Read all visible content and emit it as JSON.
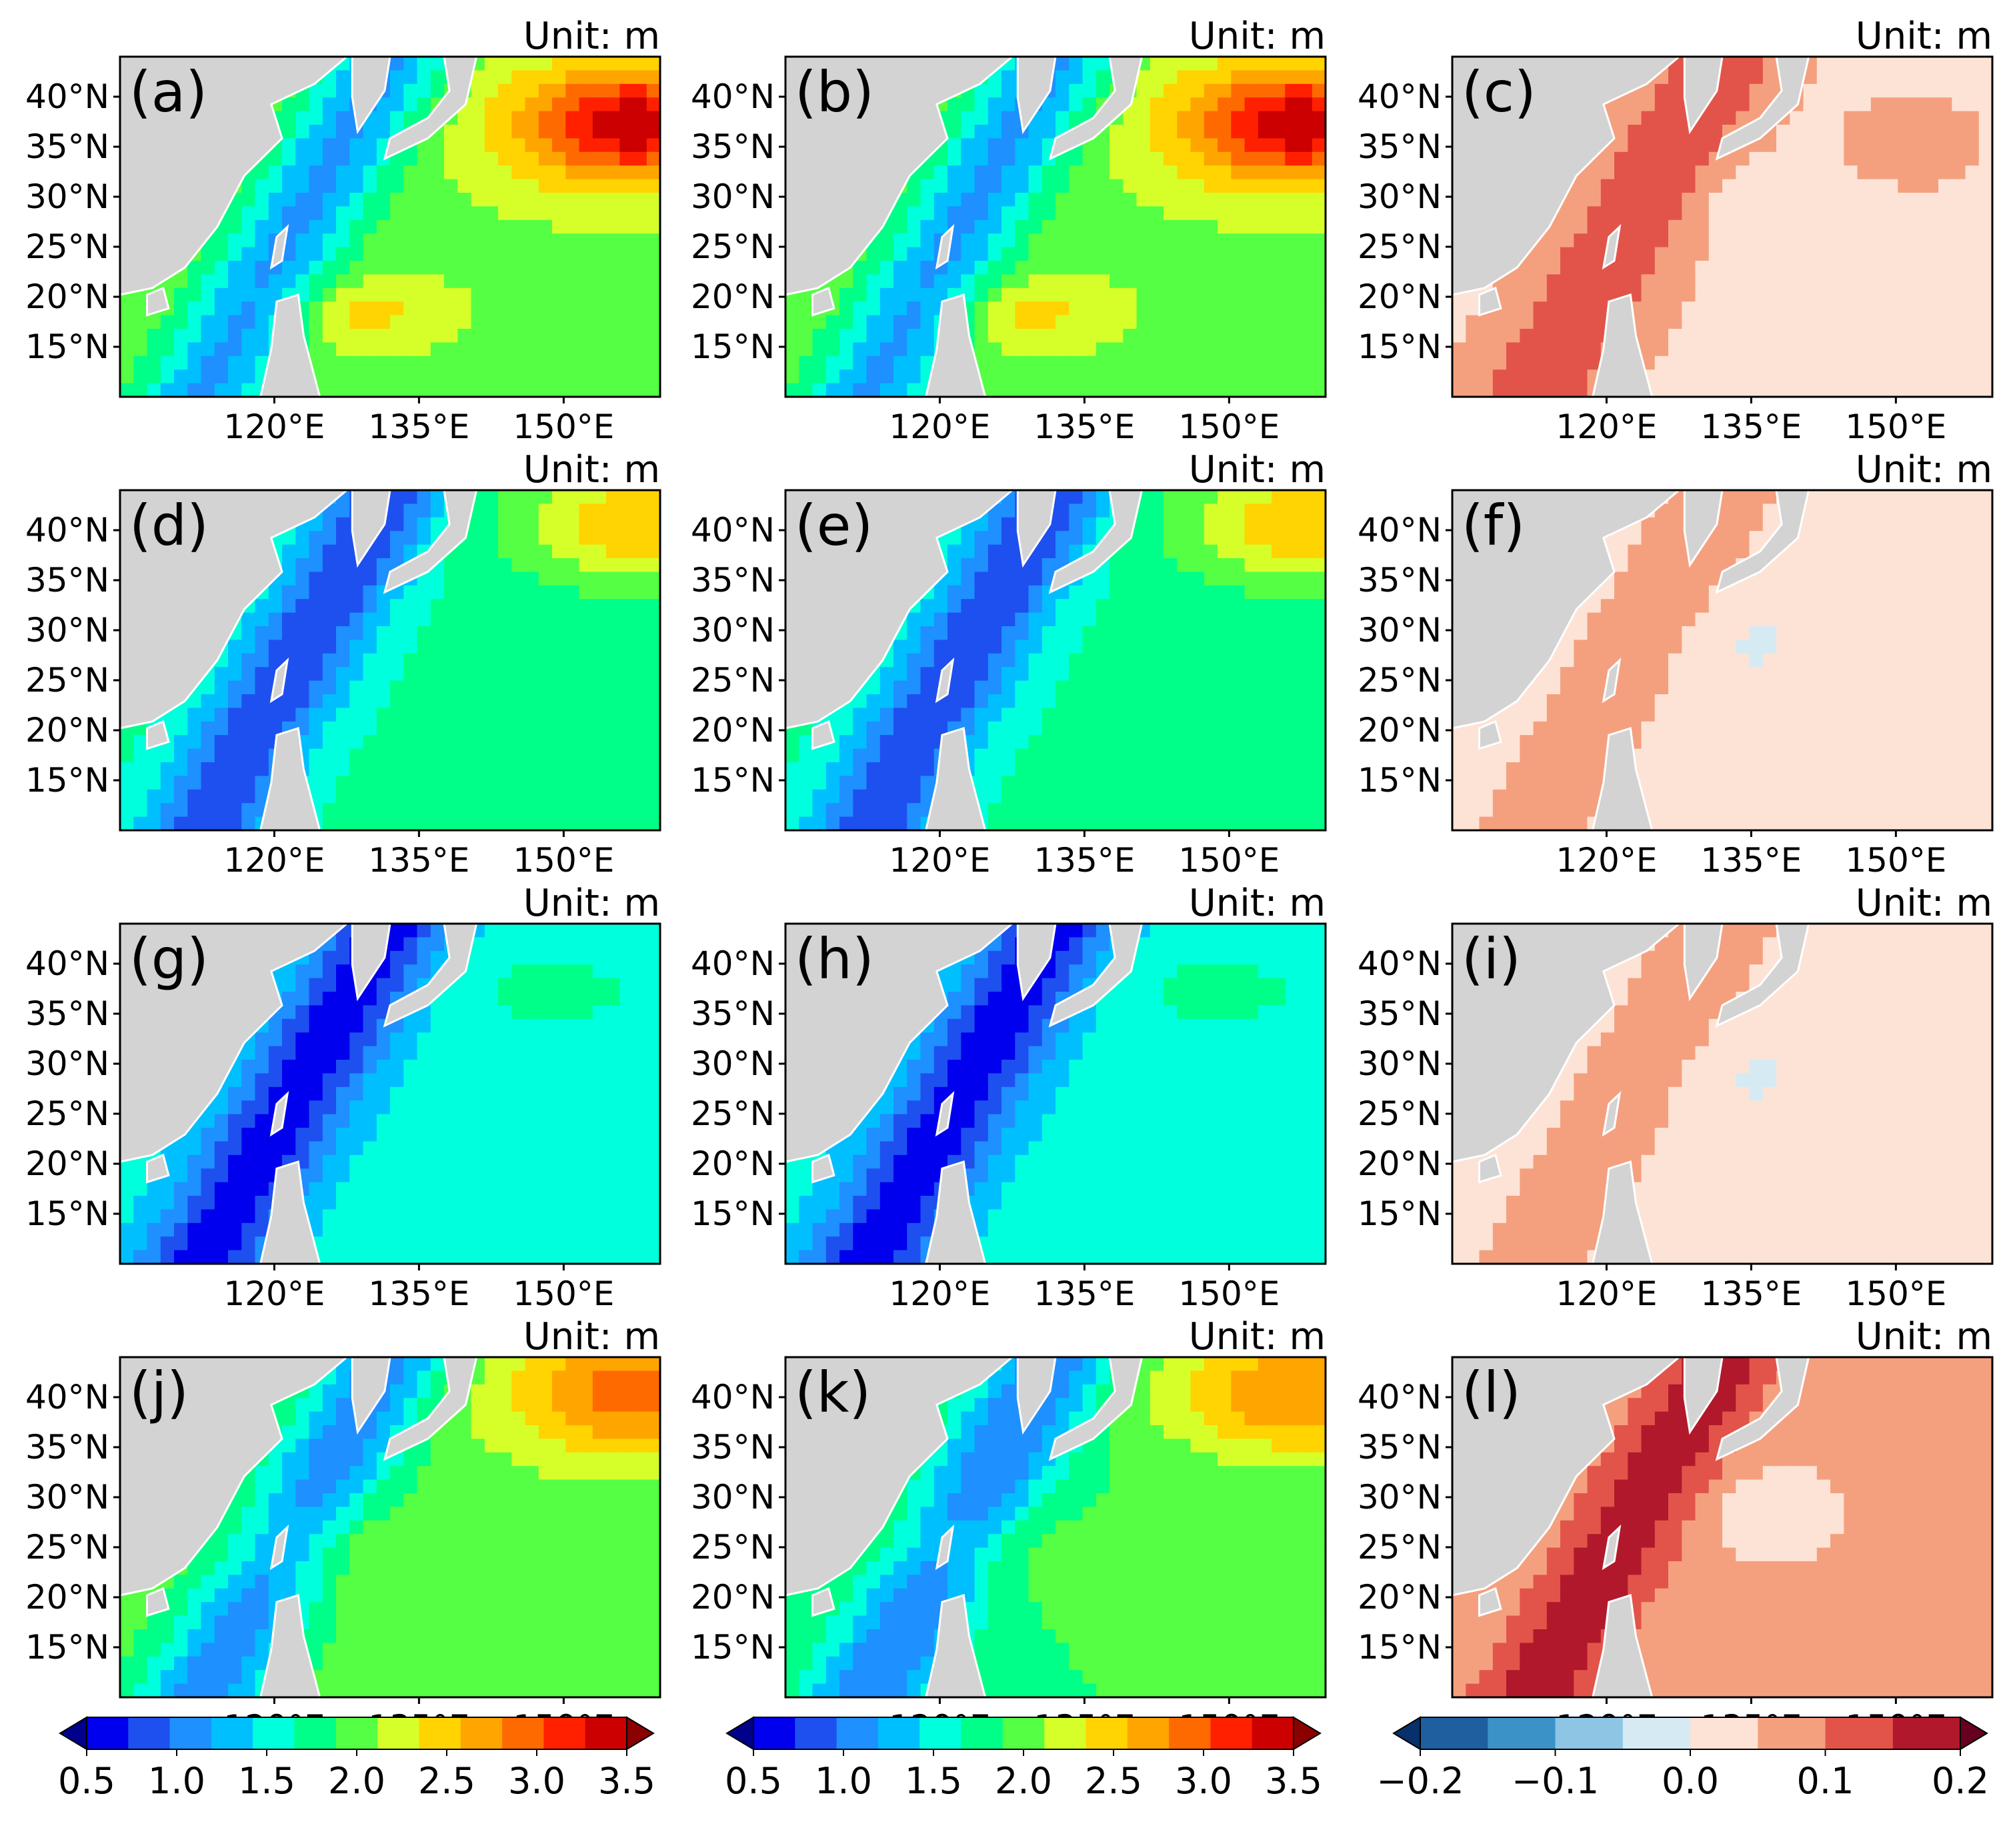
{
  "chart_data": {
    "type": "heatmap",
    "unit_title": "Unit: m",
    "lat_labels": [
      "40°N",
      "35°N",
      "30°N",
      "25°N",
      "20°N",
      "15°N"
    ],
    "lon_labels": [
      "120°E",
      "135°E",
      "150°E"
    ],
    "lat_range": [
      10,
      44
    ],
    "lon_range": [
      104,
      160
    ],
    "panels": [
      {
        "label": "(a)",
        "scheme": "abs",
        "center": "high",
        "level": 2.2
      },
      {
        "label": "(b)",
        "scheme": "abs",
        "center": "high",
        "level": 2.2
      },
      {
        "label": "(c)",
        "scheme": "diff",
        "level": 0.07
      },
      {
        "label": "(d)",
        "scheme": "abs",
        "center": "mid",
        "level": 1.8
      },
      {
        "label": "(e)",
        "scheme": "abs",
        "center": "mid",
        "level": 1.8
      },
      {
        "label": "(f)",
        "scheme": "diff",
        "level": 0.04
      },
      {
        "label": "(g)",
        "scheme": "abs",
        "center": "low",
        "level": 1.6
      },
      {
        "label": "(h)",
        "scheme": "abs",
        "center": "low",
        "level": 1.6
      },
      {
        "label": "(i)",
        "scheme": "diff",
        "level": 0.04
      },
      {
        "label": "(j)",
        "scheme": "abs",
        "center": "midhigh",
        "level": 2.1
      },
      {
        "label": "(k)",
        "scheme": "abs",
        "center": "midhigh",
        "level": 2.0
      },
      {
        "label": "(l)",
        "scheme": "diff",
        "level": 0.09
      }
    ],
    "colorbars": [
      {
        "name": "absolute",
        "ticks": [
          "0.5",
          "1.0",
          "1.5",
          "2.0",
          "2.5",
          "3.0",
          "3.5"
        ],
        "range": [
          0.5,
          3.5
        ],
        "colors": [
          "#00008b",
          "#0000ee",
          "#1e50f0",
          "#1e90ff",
          "#00bfff",
          "#00ffdd",
          "#00ff88",
          "#55ff44",
          "#d6ff2a",
          "#ffd400",
          "#ffa500",
          "#ff6a00",
          "#ff2000",
          "#cc0000",
          "#8b0000"
        ]
      },
      {
        "name": "absolute",
        "ticks": [
          "0.5",
          "1.0",
          "1.5",
          "2.0",
          "2.5",
          "3.0",
          "3.5"
        ],
        "range": [
          0.5,
          3.5
        ],
        "colors": [
          "#00008b",
          "#0000ee",
          "#1e50f0",
          "#1e90ff",
          "#00bfff",
          "#00ffdd",
          "#00ff88",
          "#55ff44",
          "#d6ff2a",
          "#ffd400",
          "#ffa500",
          "#ff6a00",
          "#ff2000",
          "#cc0000",
          "#8b0000"
        ]
      },
      {
        "name": "difference",
        "ticks": [
          "−0.2",
          "−0.1",
          "0.0",
          "0.1",
          "0.2"
        ],
        "range": [
          -0.2,
          0.2
        ],
        "colors": [
          "#08306b",
          "#1f5fa0",
          "#3a92c6",
          "#8ec4e4",
          "#d6eaf4",
          "#fde3d6",
          "#f4a07f",
          "#e2544a",
          "#b2182b",
          "#67001f"
        ]
      }
    ]
  },
  "style": {
    "land": "#d3d3d3",
    "coast": "#ffffff",
    "frame": "#000000"
  }
}
